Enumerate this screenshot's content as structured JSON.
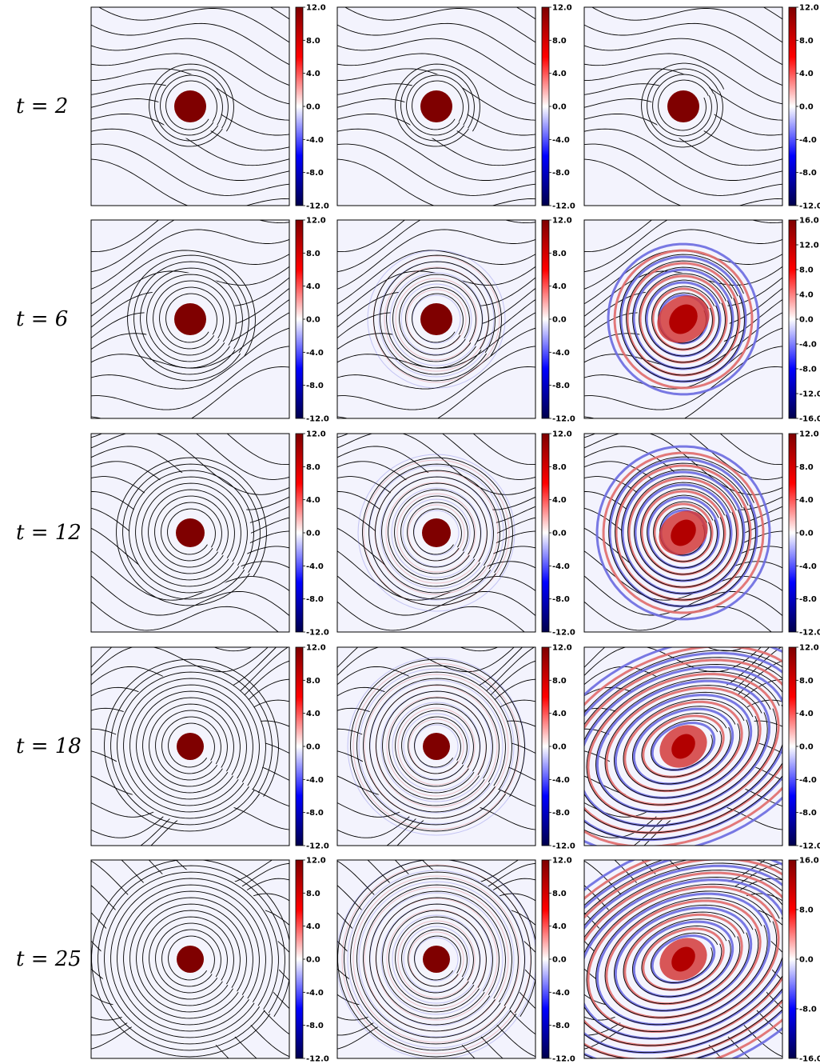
{
  "figure": {
    "rows": [
      {
        "label": "t = 2",
        "panels": [
          {
            "colorbar": [
              "12.0",
              "8.0",
              "4.0",
              "0.0",
              "-4.0",
              "-8.0",
              "-12.0"
            ]
          },
          {
            "colorbar": [
              "12.0",
              "8.0",
              "4.0",
              "0.0",
              "-4.0",
              "-8.0",
              "-12.0"
            ]
          },
          {
            "colorbar": [
              "12.0",
              "8.0",
              "4.0",
              "0.0",
              "-4.0",
              "-8.0",
              "-12.0"
            ]
          }
        ]
      },
      {
        "label": "t = 6",
        "panels": [
          {
            "colorbar": [
              "12.0",
              "8.0",
              "4.0",
              "0.0",
              "-4.0",
              "-8.0",
              "-12.0"
            ]
          },
          {
            "colorbar": [
              "12.0",
              "8.0",
              "4.0",
              "0.0",
              "-4.0",
              "-8.0",
              "-12.0"
            ]
          },
          {
            "colorbar": [
              "16.0",
              "12.0",
              "8.0",
              "4.0",
              "0.0",
              "-4.0",
              "-8.0",
              "-12.0",
              "-16.0"
            ]
          }
        ]
      },
      {
        "label": "t = 12",
        "panels": [
          {
            "colorbar": [
              "12.0",
              "8.0",
              "4.0",
              "0.0",
              "-4.0",
              "-8.0",
              "-12.0"
            ]
          },
          {
            "colorbar": [
              "12.0",
              "8.0",
              "4.0",
              "0.0",
              "-4.0",
              "-8.0",
              "-12.0"
            ]
          },
          {
            "colorbar": [
              "12.0",
              "8.0",
              "4.0",
              "0.0",
              "-4.0",
              "-8.0",
              "-12.0"
            ]
          }
        ]
      },
      {
        "label": "t = 18",
        "panels": [
          {
            "colorbar": [
              "12.0",
              "8.0",
              "4.0",
              "0.0",
              "-4.0",
              "-8.0",
              "-12.0"
            ]
          },
          {
            "colorbar": [
              "12.0",
              "8.0",
              "4.0",
              "0.0",
              "-4.0",
              "-8.0",
              "-12.0"
            ]
          },
          {
            "colorbar": [
              "12.0",
              "8.0",
              "4.0",
              "0.0",
              "-4.0",
              "-8.0",
              "-12.0"
            ]
          }
        ]
      },
      {
        "label": "t = 25",
        "panels": [
          {
            "colorbar": [
              "12.0",
              "8.0",
              "4.0",
              "0.0",
              "-4.0",
              "-8.0",
              "-12.0"
            ]
          },
          {
            "colorbar": [
              "12.0",
              "8.0",
              "4.0",
              "0.0",
              "-4.0",
              "-8.0",
              "-12.0"
            ]
          },
          {
            "colorbar": [
              "16.0",
              "8.0",
              "0.0",
              "-8.0",
              "-16.0"
            ]
          }
        ]
      }
    ],
    "colormap": "seismic",
    "colors": {
      "dark_red": "#7f0000",
      "red": "#ff0000",
      "white": "#ffffff",
      "blue": "#0000ff",
      "dark_blue": "#00004c",
      "streamline": "#000000"
    }
  }
}
